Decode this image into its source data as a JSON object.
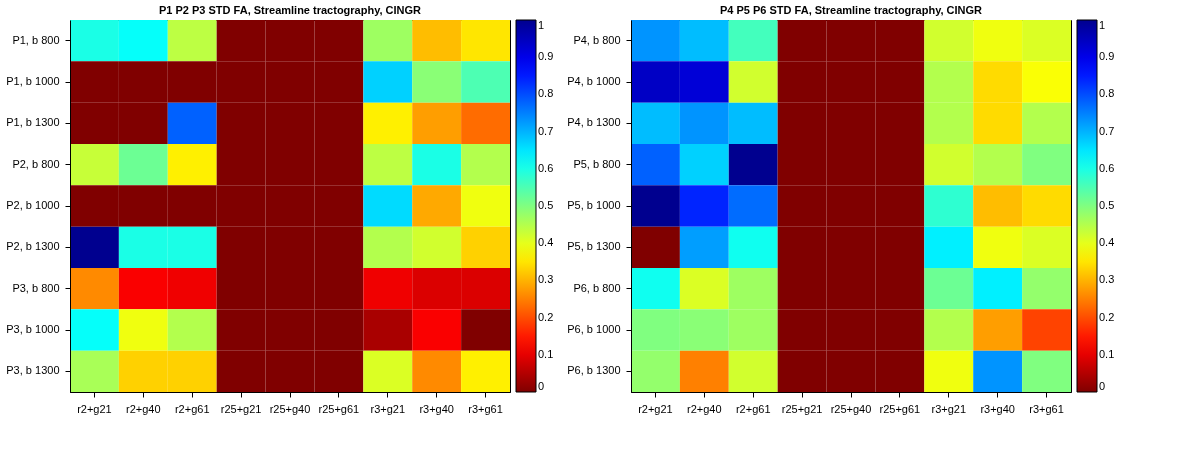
{
  "chart_data": [
    {
      "type": "heatmap",
      "title": "P1 P2 P3 STD FA, Streamline tractography, CINGR",
      "categories": [
        "r2+g21",
        "r2+g40",
        "r2+g61",
        "r25+g21",
        "r25+g40",
        "r25+g61",
        "r3+g21",
        "r3+g40",
        "r3+g61"
      ],
      "y_categories": [
        "P1, b 800",
        "P1, b 1000",
        "P1, b 1300",
        "P2, b 800",
        "P2, b 1000",
        "P2, b 1300",
        "P3, b 800",
        "P3, b 1000",
        "P3, b 1300"
      ],
      "cells": [
        [
          0.6,
          0.62,
          0.44,
          0,
          0,
          0,
          0.47,
          0.31,
          0.35
        ],
        [
          0,
          0,
          0,
          0,
          0,
          0,
          0.67,
          0.49,
          0.55
        ],
        [
          0,
          0,
          0.78,
          0,
          0,
          0,
          0.36,
          0.28,
          0.23
        ],
        [
          0.43,
          0.52,
          0.36,
          0,
          0,
          0,
          0.44,
          0.6,
          0.45
        ],
        [
          0,
          0,
          0,
          0,
          0,
          0,
          0.66,
          0.29,
          0.39
        ],
        [
          1,
          0.6,
          0.6,
          0,
          0,
          0,
          0.45,
          0.42,
          0.33
        ],
        [
          0.26,
          0.12,
          0.11,
          0,
          0,
          0,
          0.11,
          0.09,
          0.09
        ],
        [
          0.62,
          0.39,
          0.45,
          0,
          0,
          0,
          0.04,
          0.12,
          0
        ],
        [
          0.46,
          0.33,
          0.33,
          0,
          0,
          0,
          0.41,
          0.26,
          0.36
        ]
      ],
      "clim": [
        0,
        1
      ],
      "cticks": [
        0,
        0.1,
        0.2,
        0.3,
        0.4,
        0.5,
        0.6,
        0.7,
        0.8,
        0.9,
        1
      ]
    },
    {
      "type": "heatmap",
      "title": "P4 P5 P6 STD FA, Streamline tractography, CINGR",
      "categories": [
        "r2+g21",
        "r2+g40",
        "r2+g61",
        "r25+g21",
        "r25+g40",
        "r25+g61",
        "r3+g21",
        "r3+g40",
        "r3+g61"
      ],
      "y_categories": [
        "P4, b 800",
        "P4, b 1000",
        "P4, b 1300",
        "P5, b 800",
        "P5, b 1000",
        "P5, b 1300",
        "P6, b 800",
        "P6, b 1000",
        "P6, b 1300"
      ],
      "cells": [
        [
          0.73,
          0.69,
          0.56,
          0,
          0,
          0,
          0.42,
          0.39,
          0.41
        ],
        [
          0.94,
          0.92,
          0.42,
          0,
          0,
          0,
          0.45,
          0.34,
          0.38
        ],
        [
          0.69,
          0.73,
          0.69,
          0,
          0,
          0,
          0.45,
          0.34,
          0.45
        ],
        [
          0.78,
          0.67,
          1,
          0,
          0,
          0,
          0.42,
          0.45,
          0.5
        ],
        [
          1,
          0.84,
          0.77,
          0,
          0,
          0,
          0.58,
          0.31,
          0.34
        ],
        [
          0,
          0.72,
          0.61,
          0,
          0,
          0,
          0.64,
          0.39,
          0.41
        ],
        [
          0.61,
          0.41,
          0.47,
          0,
          0,
          0,
          0.52,
          0.64,
          0.48
        ],
        [
          0.5,
          0.49,
          0.47,
          0,
          0,
          0,
          0.45,
          0.28,
          0.19
        ],
        [
          0.48,
          0.25,
          0.42,
          0,
          0,
          0,
          0.39,
          0.73,
          0.5
        ]
      ],
      "clim": [
        0,
        1
      ],
      "cticks": [
        0,
        0.1,
        0.2,
        0.3,
        0.4,
        0.5,
        0.6,
        0.7,
        0.8,
        0.9,
        1
      ]
    }
  ]
}
